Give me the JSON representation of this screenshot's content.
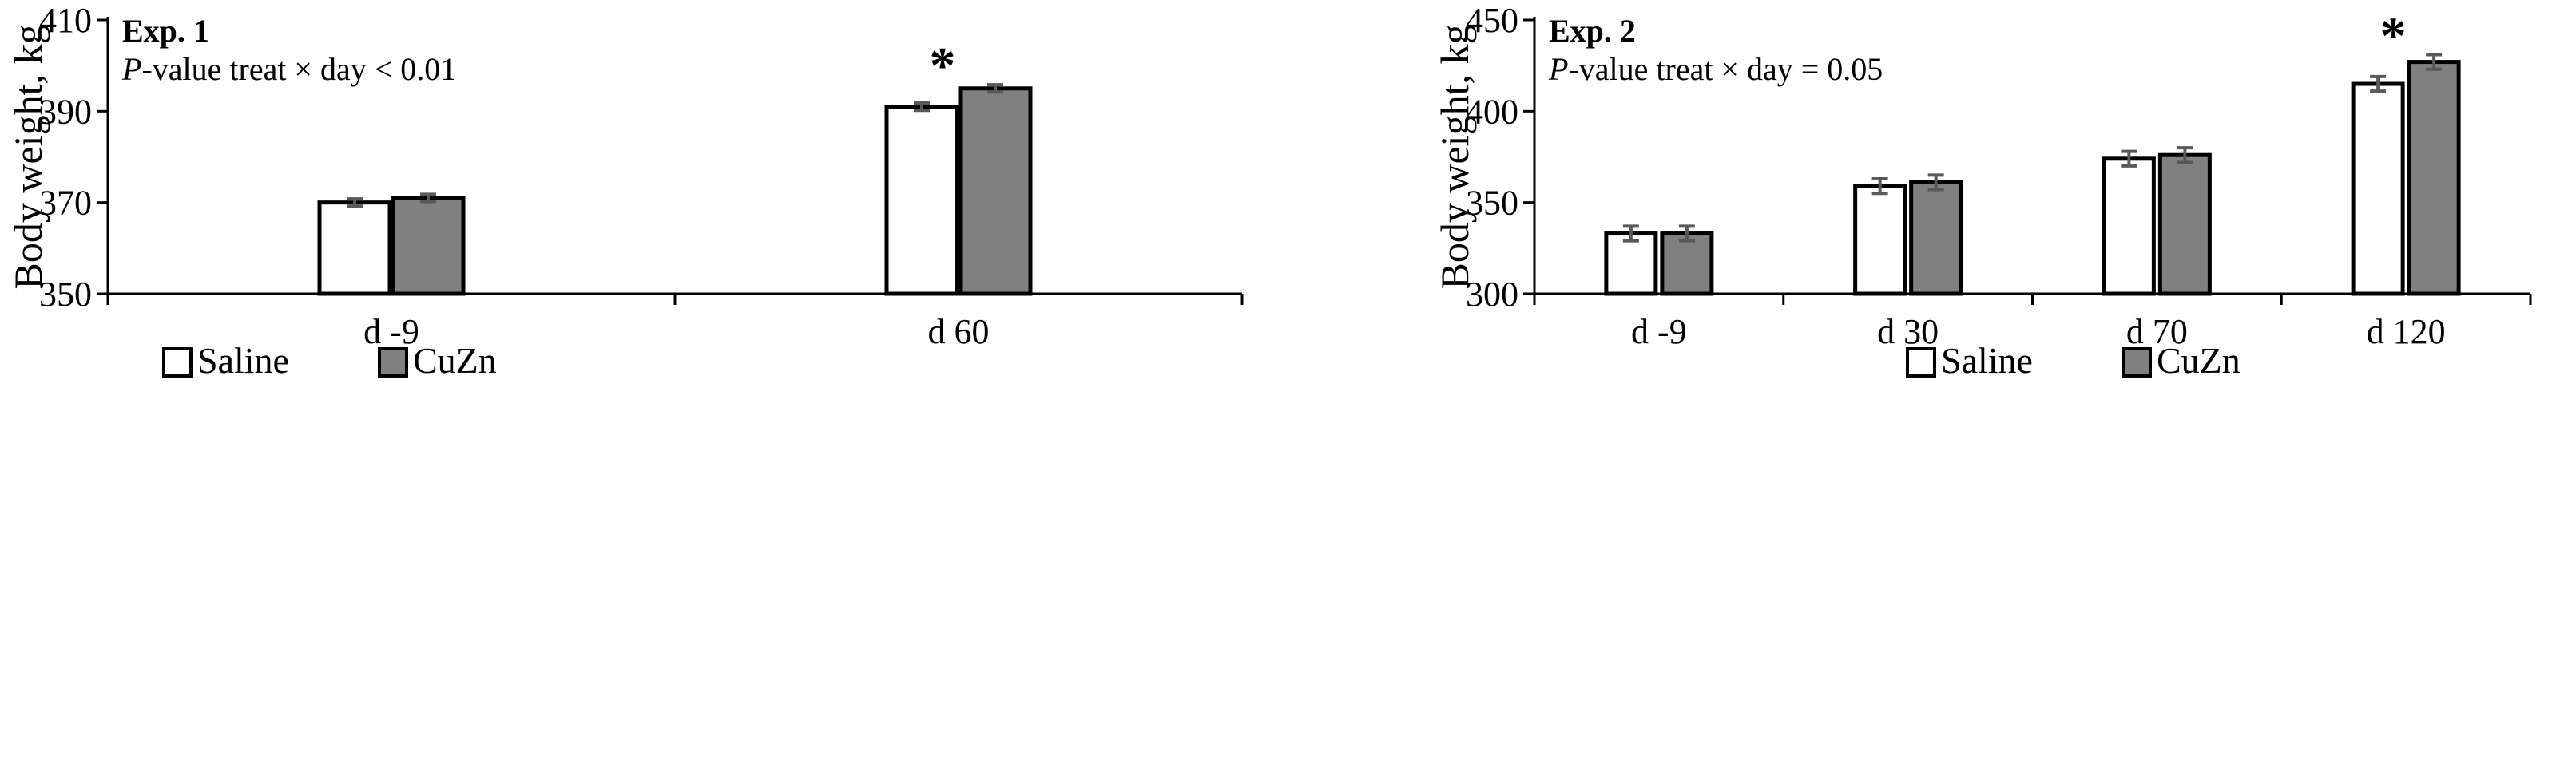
{
  "chart_data": [
    {
      "type": "bar",
      "title": "Exp. 1",
      "annotation_prefix": "P",
      "annotation_suffix": "-value treat × day < 0.01",
      "ylabel": "Body weight, kg",
      "xlabel": "",
      "ylim": [
        350,
        410
      ],
      "yticks": [
        350,
        370,
        390,
        410
      ],
      "categories": [
        "d -9",
        "d 60"
      ],
      "series": [
        {
          "name": "Saline",
          "values": [
            370,
            391
          ],
          "errors": [
            0.8,
            0.8
          ],
          "color": "#ffffff"
        },
        {
          "name": "CuZn",
          "values": [
            371,
            395
          ],
          "errors": [
            0.8,
            0.8
          ],
          "color": "#808080"
        }
      ],
      "significance": [
        {
          "category_index": 1,
          "label": "*"
        }
      ],
      "legend": [
        "Saline",
        "CuZn"
      ],
      "legend_position": "bottom",
      "grid": false
    },
    {
      "type": "bar",
      "title": "Exp. 2",
      "annotation_prefix": "P",
      "annotation_suffix": "-value treat × day = 0.05",
      "ylabel": "Body weight, kg",
      "xlabel": "",
      "ylim": [
        300,
        450
      ],
      "yticks": [
        300,
        350,
        400,
        450
      ],
      "categories": [
        "d -9",
        "d 30",
        "d 70",
        "d 120"
      ],
      "series": [
        {
          "name": "Saline",
          "values": [
            333,
            359,
            374,
            415
          ],
          "errors": [
            4,
            4,
            4,
            4
          ],
          "color": "#ffffff"
        },
        {
          "name": "CuZn",
          "values": [
            333,
            361,
            376,
            427
          ],
          "errors": [
            4,
            4,
            4,
            4
          ],
          "color": "#808080"
        }
      ],
      "significance": [
        {
          "category_index": 3,
          "label": "*"
        }
      ],
      "legend": [
        "Saline",
        "CuZn"
      ],
      "legend_position": "bottom",
      "grid": false
    }
  ]
}
